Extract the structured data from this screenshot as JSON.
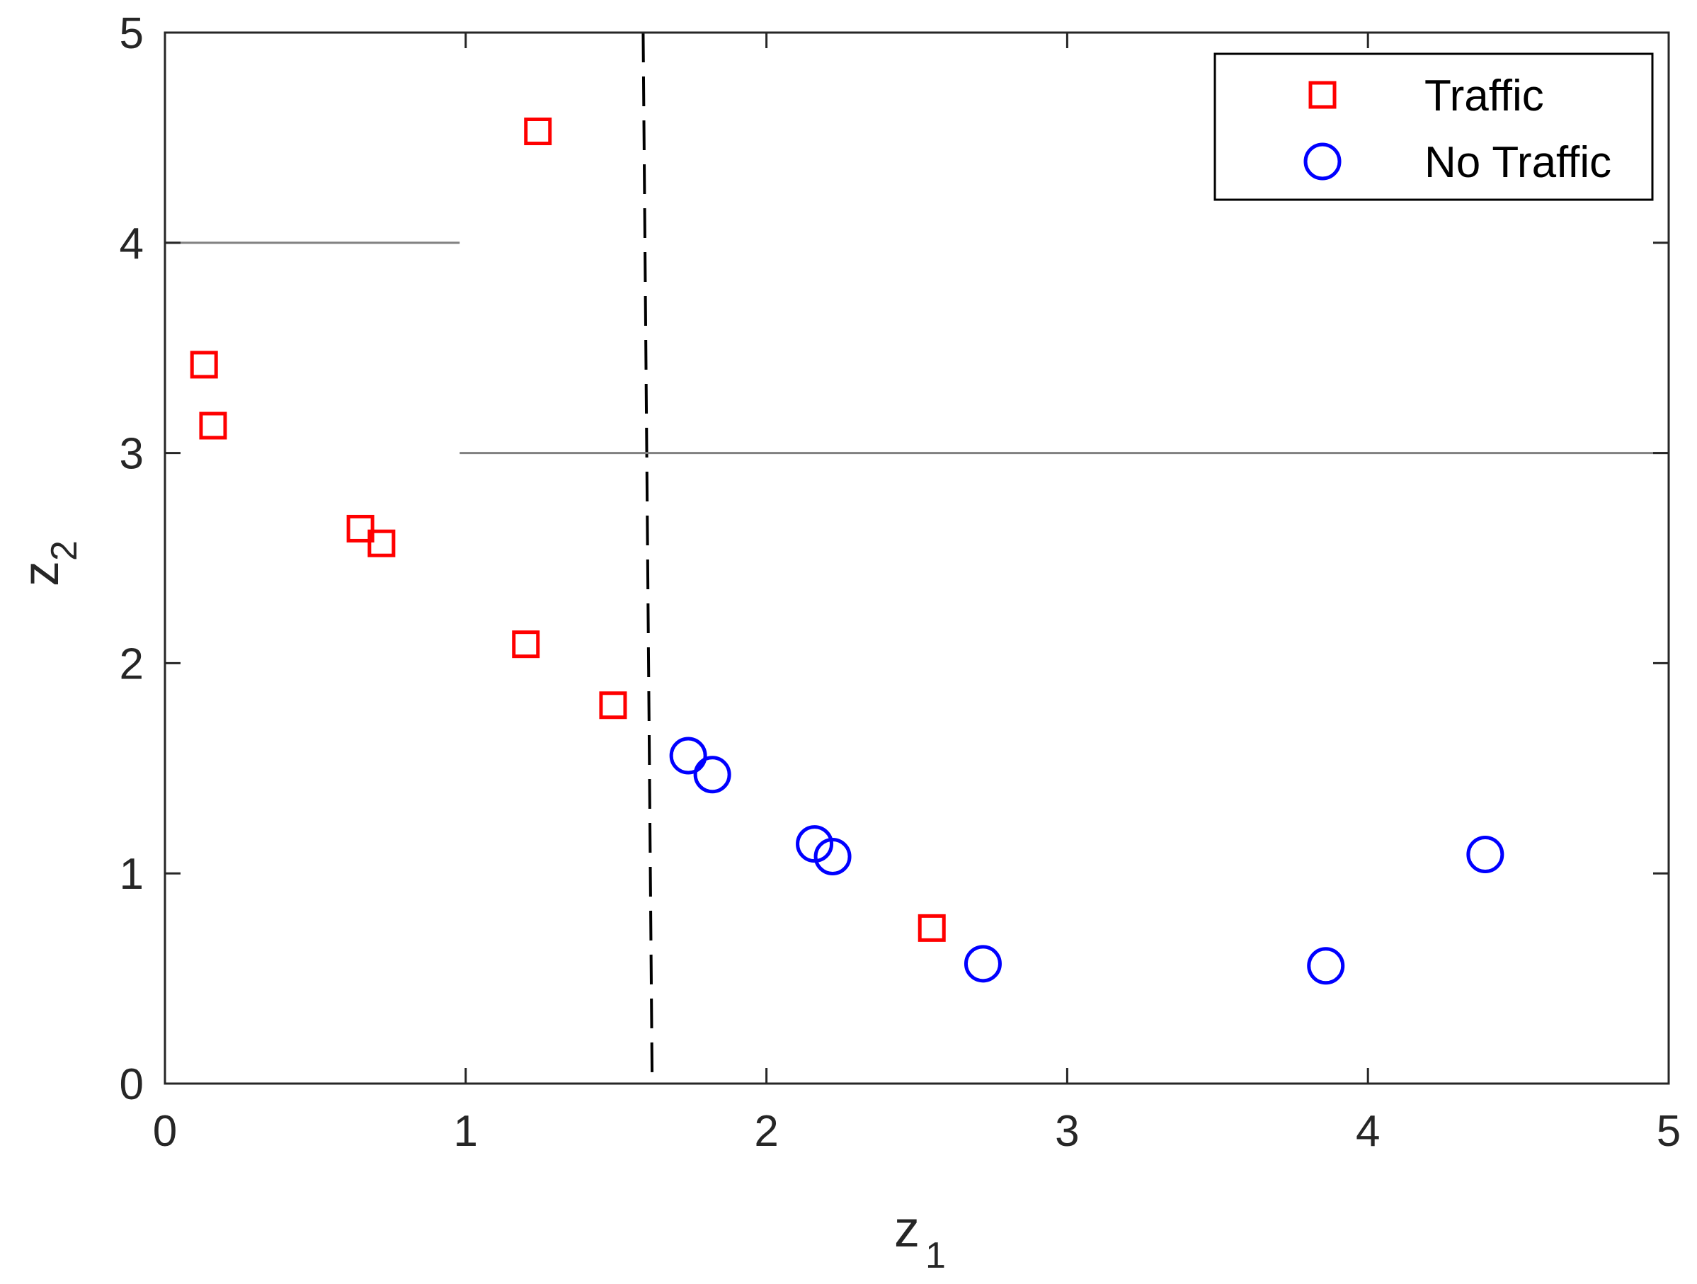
{
  "chart_data": {
    "type": "scatter",
    "title": "",
    "xlabel": "z",
    "xlabel_subscript": "1",
    "ylabel": "z",
    "ylabel_subscript": "2",
    "xlim": [
      0,
      5
    ],
    "ylim": [
      0,
      5
    ],
    "x_ticks": [
      0,
      1,
      2,
      3,
      4,
      5
    ],
    "y_ticks": [
      0,
      1,
      2,
      3,
      4,
      5
    ],
    "x_tick_labels": [
      "0",
      "1",
      "2",
      "3",
      "4",
      "5"
    ],
    "y_tick_labels": [
      "0",
      "1",
      "2",
      "3",
      "4",
      "5"
    ],
    "grid": false,
    "legend_position": "top-right",
    "series": [
      {
        "name": "Traffic",
        "marker": "square",
        "color": "#ff0000",
        "points": [
          [
            1.24,
            4.53
          ],
          [
            0.13,
            3.42
          ],
          [
            0.16,
            3.13
          ],
          [
            0.65,
            2.64
          ],
          [
            0.72,
            2.57
          ],
          [
            1.2,
            2.09
          ],
          [
            1.49,
            1.8
          ],
          [
            2.55,
            0.74
          ]
        ]
      },
      {
        "name": "No Traffic",
        "marker": "circle",
        "color": "#0000ff",
        "points": [
          [
            1.74,
            1.56
          ],
          [
            1.82,
            1.47
          ],
          [
            2.16,
            1.14
          ],
          [
            2.22,
            1.08
          ],
          [
            2.72,
            0.57
          ],
          [
            3.86,
            0.56
          ],
          [
            4.39,
            1.09
          ]
        ]
      }
    ],
    "reference_lines": [
      {
        "kind": "dashed",
        "color": "#000000",
        "from": [
          1.59,
          5
        ],
        "to": [
          1.62,
          0
        ]
      },
      {
        "kind": "solid",
        "color": "#808080",
        "from": [
          0,
          4
        ],
        "to": [
          0.98,
          4
        ]
      },
      {
        "kind": "solid",
        "color": "#808080",
        "from": [
          0.98,
          3
        ],
        "to": [
          5,
          3
        ]
      }
    ]
  }
}
